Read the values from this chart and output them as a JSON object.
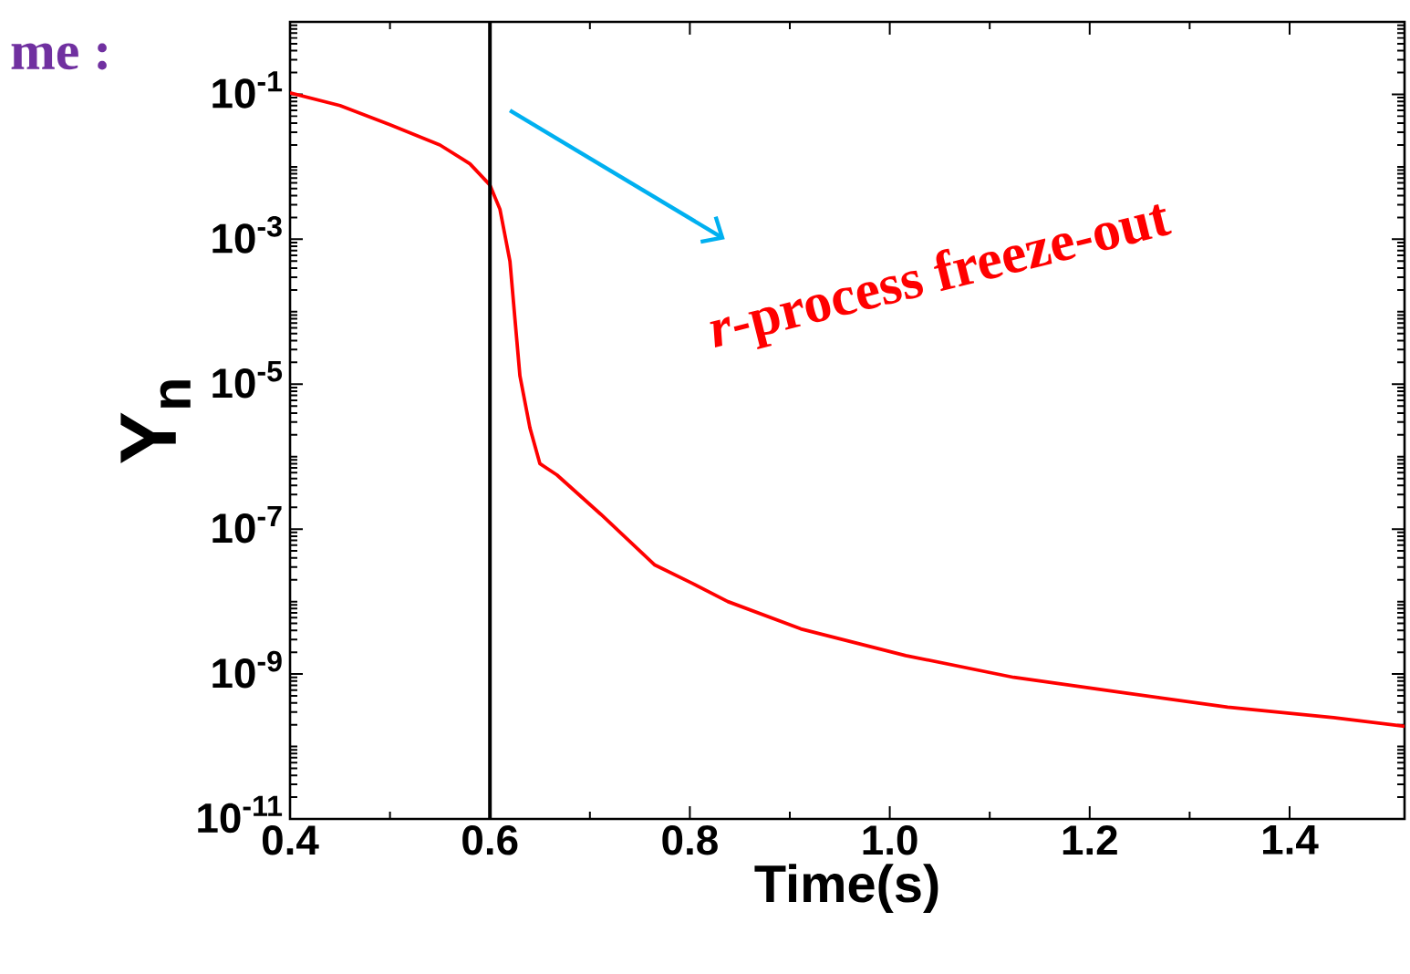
{
  "chart_data": {
    "type": "line",
    "xlabel": "Time(s)",
    "ylabel": "Y$_{n}$",
    "xlim": [
      0.4,
      1.515
    ],
    "ylim": [
      1e-11,
      1
    ],
    "log": "y",
    "xticks": [
      0.4,
      0.6,
      0.8,
      {
        "value": 1.0,
        "label": "1.0"
      },
      1.2,
      1.4
    ],
    "yticks": [
      {
        "value": 1e-11,
        "label": "10$^{-11}$"
      },
      {
        "value": 1e-09,
        "label": "10$^{-9}$"
      },
      {
        "value": 1e-07,
        "label": "10$^{-7}$"
      },
      {
        "value": 1e-05,
        "label": "10$^{-5}$"
      },
      {
        "value": 0.001,
        "label": "10$^{-3}$"
      },
      {
        "value": 0.1,
        "label": "10$^{-1}$"
      }
    ],
    "series": [
      {
        "color": "#ff0000",
        "x": [
          0.4,
          0.45,
          0.5,
          0.55,
          0.58,
          0.6,
          0.61,
          0.62,
          0.625,
          0.63,
          0.64,
          0.65,
          0.667,
          0.711,
          0.765,
          0.802,
          0.838,
          0.911,
          1.016,
          1.124,
          1.231,
          1.338,
          1.444,
          1.515
        ],
        "values": [
          0.105,
          0.07,
          0.038,
          0.02,
          0.011,
          0.0056,
          0.0026,
          0.0005,
          8e-05,
          1.3e-05,
          2.5e-06,
          8e-07,
          5.6e-07,
          1.6e-07,
          3.2e-08,
          1.8e-08,
          1e-08,
          4.2e-09,
          1.8e-09,
          9e-10,
          5.6e-10,
          3.5e-10,
          2.5e-10,
          1.9e-10
        ]
      }
    ],
    "ref_lines": [
      {
        "axis": "x",
        "value": 0.6,
        "color": "#000000"
      }
    ],
    "annotations": [
      "*r*-process freeze-out",
      "me :"
    ]
  }
}
